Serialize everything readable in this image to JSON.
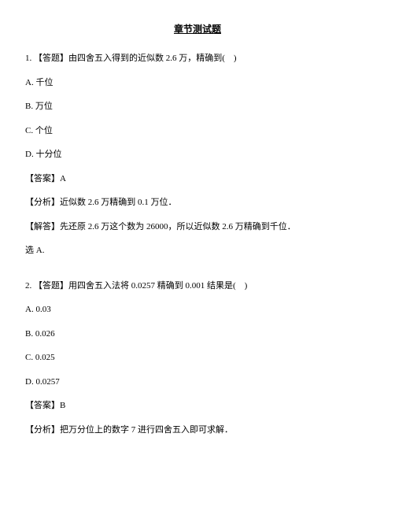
{
  "title": "章节测试题",
  "q1": {
    "stem": "1. 【答题】由四舍五入得到的近似数 2.6 万，精确到(　)",
    "opt_a": "A. 千位",
    "opt_b": "B. 万位",
    "opt_c": "C. 个位",
    "opt_d": "D. 十分位",
    "answer": "【答案】A",
    "analysis": "【分析】近似数 2.6 万精确到 0.1 万位．",
    "solution": "【解答】先还原 2.6 万这个数为 26000，所以近似数 2.6 万精确到千位．",
    "conclusion": "选 A."
  },
  "q2": {
    "stem": "2. 【答题】用四舍五入法将 0.0257 精确到 0.001 结果是(　)",
    "opt_a": "A. 0.03",
    "opt_b": "B. 0.026",
    "opt_c": "C. 0.025",
    "opt_d": "D. 0.0257",
    "answer": "【答案】B",
    "analysis": "【分析】把万分位上的数字 7 进行四舍五入即可求解．"
  }
}
